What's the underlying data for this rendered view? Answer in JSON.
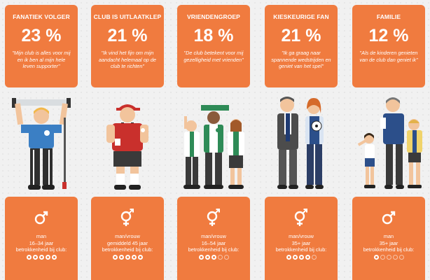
{
  "colors": {
    "accent": "#f07b3f",
    "background": "#f1f1f1",
    "text_on_accent": "#ffffff"
  },
  "segments": [
    {
      "title": "FANATIEK VOLGER",
      "percentage": "23 %",
      "quote": "\"Mijn club is alles voor mij en ik ben al mijn hele leven supporter\"",
      "gender_icon": "male-symbol-icon",
      "gender": "man",
      "age": "16–34 jaar",
      "involvement_label": "betrokkenheid bij club:",
      "involvement_score": 5,
      "involvement_max": 5
    },
    {
      "title": "CLUB IS UITLAATKLEP",
      "percentage": "21 %",
      "quote": "\"Ik vind het fijn om mijn aandacht helemaal op de club te richten\"",
      "gender_icon": "female-male-symbol-icon",
      "gender": "man/vrouw",
      "age": "gemiddeld 45 jaar",
      "involvement_label": "betrokkenheid bij club:",
      "involvement_score": 5,
      "involvement_max": 5
    },
    {
      "title": "VRIENDENGROEP",
      "percentage": "18 %",
      "quote": "\"De club betekent voor mij gezelligheid met vrienden\"",
      "gender_icon": "female-male-symbol-icon",
      "gender": "man/vrouw",
      "age": "16–54 jaar",
      "involvement_label": "betrokkenheid bij club:",
      "involvement_score": 3,
      "involvement_max": 5
    },
    {
      "title": "KIESKEURIGE FAN",
      "percentage": "21 %",
      "quote": "\"Ik ga graag naar spannende wedstrijden en geniet van het spel\"",
      "gender_icon": "female-male-symbol-icon",
      "gender": "man/vrouw",
      "age": "35+ jaar",
      "involvement_label": "betrokkenheid bij club:",
      "involvement_score": 4,
      "involvement_max": 5
    },
    {
      "title": "FAMILIE",
      "percentage": "12 %",
      "quote": "\"Als de kinderen genieten van de club dan geniet ik\"",
      "gender_icon": "male-symbol-icon",
      "gender": "man",
      "age": "35+ jaar",
      "involvement_label": "betrokkenheid bij club:",
      "involvement_score": 1,
      "involvement_max": 5
    }
  ]
}
